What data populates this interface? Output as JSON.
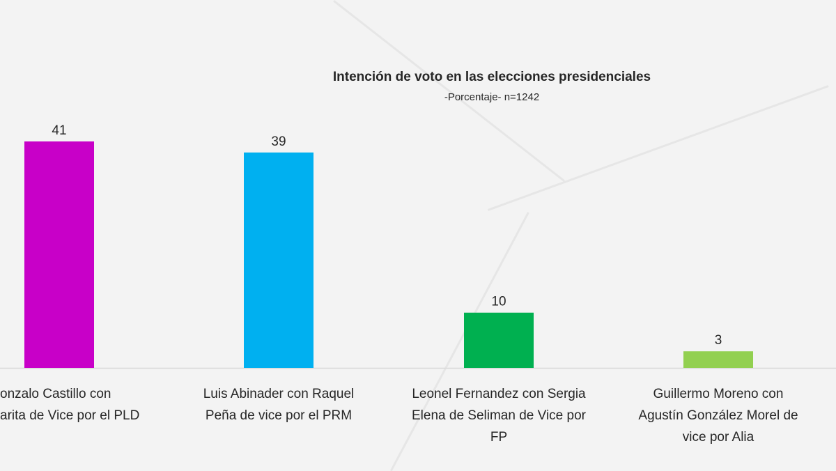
{
  "chart_data": {
    "type": "bar",
    "title": "Intención de voto en las elecciones presidenciales",
    "subtitle": "-Porcentaje- n=1242",
    "categories": [
      [
        "onzalo Castillo con",
        "arita de Vice por el PLD"
      ],
      [
        "Luis Abinader con Raquel",
        "Peña de vice por el PRM"
      ],
      [
        "Leonel Fernandez con Sergia",
        "Elena de Seliman de Vice por",
        "FP"
      ],
      [
        "Guillermo Moreno con",
        "Agustín González Morel de",
        "vice por Alia"
      ]
    ],
    "values": [
      41,
      39,
      10,
      3
    ],
    "colors": [
      "#c800c8",
      "#00b0f0",
      "#00b050",
      "#92d050"
    ],
    "ylim": [
      0,
      41
    ],
    "grid": false,
    "data_labels": true
  }
}
